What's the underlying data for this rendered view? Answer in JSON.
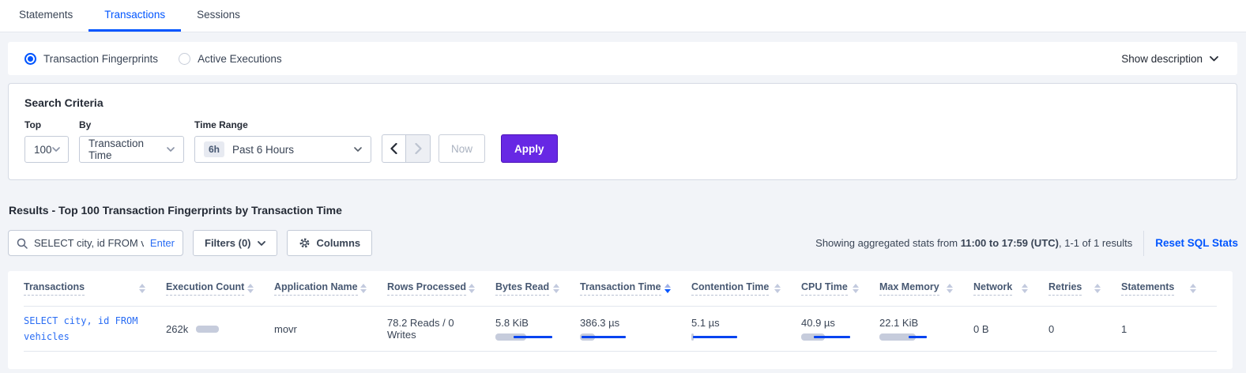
{
  "tabs": {
    "items": [
      {
        "label": "Statements"
      },
      {
        "label": "Transactions",
        "active": true
      },
      {
        "label": "Sessions"
      }
    ]
  },
  "view_toggle": {
    "options": [
      {
        "label": "Transaction Fingerprints",
        "selected": true
      },
      {
        "label": "Active Executions",
        "selected": false
      }
    ],
    "show_description_label": "Show description"
  },
  "search_criteria": {
    "title": "Search Criteria",
    "top": {
      "label": "Top",
      "value": "100"
    },
    "by": {
      "label": "By",
      "value": "Transaction Time"
    },
    "time_range": {
      "label": "Time Range",
      "badge": "6h",
      "value": "Past 6 Hours"
    },
    "now_label": "Now",
    "apply_label": "Apply"
  },
  "results": {
    "heading": "Results - Top 100 Transaction Fingerprints by Transaction Time",
    "search": {
      "value": "SELECT city, id FROM vehicles W",
      "enter_label": "Enter"
    },
    "filters_label": "Filters (0)",
    "columns_label": "Columns",
    "stats_prefix": "Showing aggregated stats from ",
    "stats_range": "11:00 to 17:59 (UTC)",
    "stats_suffix": ", 1-1 of 1 results",
    "reset_label": "Reset SQL Stats"
  },
  "colors": {
    "accent_blue": "#0055FF",
    "accent_purple": "#6728E4",
    "bar_gray": "#C6CCDC",
    "bar_blue": "#0743F0"
  },
  "table": {
    "sorted_by": "Transaction Time",
    "sort_direction": "desc",
    "columns": [
      {
        "label": "Transactions"
      },
      {
        "label": "Execution Count"
      },
      {
        "label": "Application Name"
      },
      {
        "label": "Rows Processed"
      },
      {
        "label": "Bytes Read"
      },
      {
        "label": "Transaction Time",
        "sorted": "desc"
      },
      {
        "label": "Contention Time"
      },
      {
        "label": "CPU Time"
      },
      {
        "label": "Max Memory"
      },
      {
        "label": "Network"
      },
      {
        "label": "Retries"
      },
      {
        "label": "Statements"
      }
    ],
    "row": {
      "transactions": "SELECT city, id FROM vehicles",
      "execution_count": "262k",
      "execution_count_bar": {
        "gray_pct": 57
      },
      "application_name": "movr",
      "rows_processed": "78.2 Reads / 0 Writes",
      "bytes_read": "5.8 KiB",
      "bytes_read_bar": {
        "gray_pct": 44,
        "blue_start_pct": 26,
        "blue_end_pct": 82
      },
      "transaction_time": "386.3 µs",
      "transaction_time_bar": {
        "gray_pct": 22,
        "blue_start_pct": 2,
        "blue_end_pct": 66
      },
      "contention_time": "5.1 µs",
      "contention_time_bar": {
        "gray_pct": 3,
        "blue_start_pct": 2,
        "blue_end_pct": 66
      },
      "cpu_time": "40.9 µs",
      "cpu_time_bar": {
        "gray_pct": 34,
        "blue_start_pct": 18,
        "blue_end_pct": 70
      },
      "max_memory": "22.1 KiB",
      "max_memory_bar": {
        "gray_pct": 52,
        "blue_start_pct": 42,
        "blue_end_pct": 68
      },
      "network": "0 B",
      "retries": "0",
      "statements": "1"
    }
  }
}
